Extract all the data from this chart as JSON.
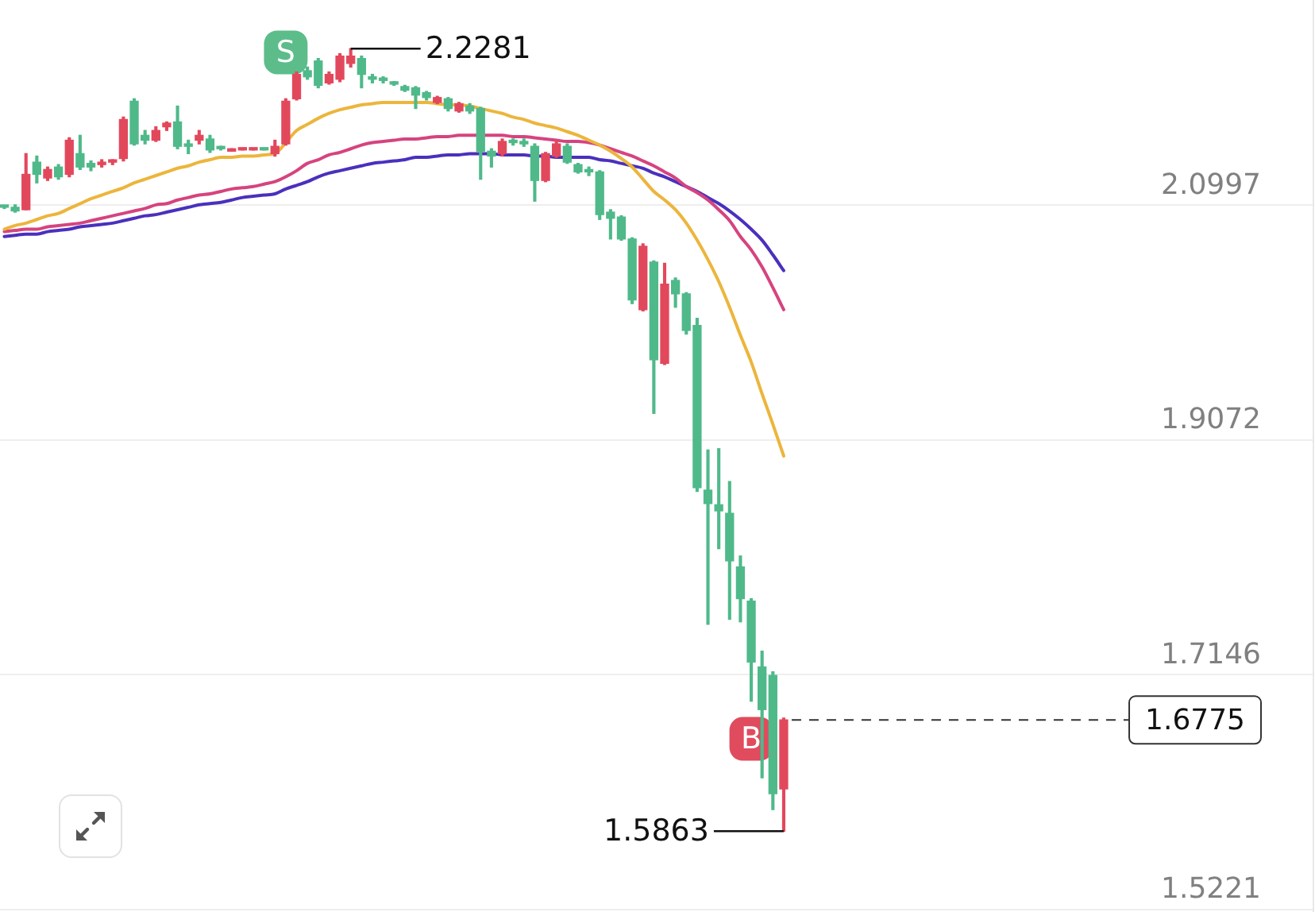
{
  "chart_data": {
    "type": "candlestick",
    "categories": [
      null,
      null,
      null,
      null,
      null,
      null,
      null,
      null,
      null,
      null,
      null,
      null,
      null,
      null,
      null,
      null,
      null,
      null,
      null,
      null,
      null,
      null,
      null,
      null,
      null,
      null,
      null,
      null,
      null,
      null,
      null,
      null,
      null,
      null,
      null,
      null,
      null,
      null,
      null,
      null,
      null,
      null,
      null,
      null,
      null,
      null,
      null,
      null,
      null,
      null,
      null,
      null,
      null,
      null,
      null,
      null,
      null,
      null,
      null,
      null,
      null,
      null,
      null,
      null,
      null,
      null,
      null,
      null,
      null,
      null,
      null,
      null,
      null
    ],
    "series": [
      {
        "ohlc": [
          [
            2.098,
            2.099,
            2.097,
            2.098
          ],
          [
            2.098,
            2.1,
            2.094,
            2.095
          ],
          [
            2.096,
            2.142,
            2.096,
            2.125
          ],
          [
            2.135,
            2.14,
            2.118,
            2.125
          ],
          [
            2.122,
            2.131,
            2.12,
            2.129
          ],
          [
            2.131,
            2.133,
            2.121,
            2.123
          ],
          [
            2.125,
            2.155,
            2.123,
            2.153
          ],
          [
            2.142,
            2.157,
            2.129,
            2.131
          ],
          [
            2.134,
            2.136,
            2.128,
            2.131
          ],
          [
            2.133,
            2.137,
            2.131,
            2.135
          ],
          [
            2.135,
            2.137,
            2.133,
            2.136
          ],
          [
            2.138,
            2.172,
            2.136,
            2.17
          ],
          [
            2.185,
            2.187,
            2.149,
            2.15
          ],
          [
            2.157,
            2.161,
            2.15,
            2.153
          ],
          [
            2.153,
            2.164,
            2.152,
            2.161
          ],
          [
            2.164,
            2.168,
            2.161,
            2.167
          ],
          [
            2.168,
            2.181,
            2.146,
            2.148
          ],
          [
            2.15,
            2.153,
            2.142,
            2.148
          ],
          [
            2.153,
            2.161,
            2.15,
            2.157
          ],
          [
            2.154,
            2.157,
            2.143,
            2.145
          ],
          [
            2.147,
            2.148,
            2.145,
            2.146
          ],
          [
            2.144,
            2.146,
            2.144,
            2.146
          ],
          [
            2.145,
            2.145,
            2.145,
            2.145
          ],
          [
            2.145,
            2.145,
            2.145,
            2.145
          ],
          [
            2.145,
            2.145,
            2.145,
            2.145
          ],
          [
            2.142,
            2.153,
            2.14,
            2.148
          ],
          [
            2.15,
            2.187,
            2.149,
            2.185
          ],
          [
            2.187,
            2.209,
            2.186,
            2.207
          ],
          [
            2.21,
            2.213,
            2.203,
            2.205
          ],
          [
            2.218,
            2.22,
            2.196,
            2.198
          ],
          [
            2.2,
            2.209,
            2.199,
            2.207
          ],
          [
            2.203,
            2.224,
            2.201,
            2.222
          ],
          [
            2.216,
            2.2281,
            2.213,
            2.222
          ],
          [
            2.22,
            2.222,
            2.196,
            2.207
          ],
          [
            2.205,
            2.207,
            2.2,
            2.203
          ],
          [
            2.204,
            2.205,
            2.2,
            2.202
          ],
          [
            2.2,
            2.201,
            2.198,
            2.199
          ],
          [
            2.197,
            2.198,
            2.193,
            2.194
          ],
          [
            2.196,
            2.197,
            2.179,
            2.19
          ],
          [
            2.192,
            2.193,
            2.186,
            2.188
          ],
          [
            2.184,
            2.189,
            2.183,
            2.188
          ],
          [
            2.187,
            2.188,
            2.177,
            2.179
          ],
          [
            2.177,
            2.184,
            2.176,
            2.183
          ],
          [
            2.181,
            2.183,
            2.175,
            2.177
          ],
          [
            2.179,
            2.18,
            2.121,
            2.144
          ],
          [
            2.144,
            2.146,
            2.131,
            2.14
          ],
          [
            2.142,
            2.154,
            2.14,
            2.152
          ],
          [
            2.153,
            2.154,
            2.149,
            2.151
          ],
          [
            2.152,
            2.154,
            2.148,
            2.15
          ],
          [
            2.148,
            2.15,
            2.103,
            2.12
          ],
          [
            2.12,
            2.143,
            2.119,
            2.142
          ],
          [
            2.14,
            2.153,
            2.139,
            2.15
          ],
          [
            2.148,
            2.15,
            2.134,
            2.135
          ],
          [
            2.133,
            2.134,
            2.126,
            2.127
          ],
          [
            2.128,
            2.131,
            2.124,
            2.127
          ],
          [
            2.127,
            2.128,
            2.088,
            2.092
          ],
          [
            2.094,
            2.096,
            2.072,
            2.089
          ],
          [
            2.09,
            2.091,
            2.071,
            2.072
          ],
          [
            2.072,
            2.073,
            2.019,
            2.022
          ],
          [
            2.014,
            2.068,
            2.013,
            2.066
          ],
          [
            2.053,
            2.054,
            1.929,
            1.973
          ],
          [
            1.97,
            2.052,
            1.969,
            2.035
          ],
          [
            2.038,
            2.04,
            2.016,
            2.027
          ],
          [
            2.027,
            2.028,
            1.994,
            1.997
          ],
          [
            2.001,
            2.007,
            1.865,
            1.868
          ],
          [
            1.866,
            1.899,
            1.756,
            1.855
          ],
          [
            1.854,
            1.9,
            1.818,
            1.849
          ],
          [
            1.847,
            1.873,
            1.76,
            1.808
          ],
          [
            1.803,
            1.812,
            1.758,
            1.777
          ],
          [
            1.775,
            1.777,
            1.693,
            1.725
          ],
          [
            1.721,
            1.734,
            1.63,
            1.686
          ],
          [
            1.714,
            1.717,
            1.604,
            1.617
          ],
          [
            1.621,
            1.679,
            1.5863,
            1.6775
          ]
        ],
        "colors": [
          "#4fb98a",
          "#4fb98a",
          "#e2485c",
          "#4fb98a",
          "#e2485c",
          "#4fb98a",
          "#e2485c",
          "#4fb98a",
          "#4fb98a",
          "#e2485c",
          "#e2485c",
          "#e2485c",
          "#4fb98a",
          "#4fb98a",
          "#e2485c",
          "#e2485c",
          "#4fb98a",
          "#4fb98a",
          "#e2485c",
          "#4fb98a",
          "#4fb98a",
          "#e2485c",
          "#e2485c",
          "#e2485c",
          "#4fb98a",
          "#e2485c",
          "#e2485c",
          "#e2485c",
          "#4fb98a",
          "#4fb98a",
          "#e2485c",
          "#e2485c",
          "#e2485c",
          "#4fb98a",
          "#4fb98a",
          "#4fb98a",
          "#4fb98a",
          "#4fb98a",
          "#4fb98a",
          "#4fb98a",
          "#e2485c",
          "#4fb98a",
          "#e2485c",
          "#4fb98a",
          "#4fb98a",
          "#4fb98a",
          "#e2485c",
          "#4fb98a",
          "#4fb98a",
          "#4fb98a",
          "#e2485c",
          "#e2485c",
          "#4fb98a",
          "#4fb98a",
          "#4fb98a",
          "#4fb98a",
          "#4fb98a",
          "#4fb98a",
          "#4fb98a",
          "#e2485c",
          "#4fb98a",
          "#e2485c",
          "#4fb98a",
          "#4fb98a",
          "#4fb98a",
          "#4fb98a",
          "#4fb98a",
          "#4fb98a",
          "#4fb98a",
          "#4fb98a",
          "#4fb98a",
          "#4fb98a",
          "#e2485c"
        ]
      },
      {
        "type": "line",
        "color": "#ecb53c",
        "values": [
          2.08,
          2.083,
          2.085,
          2.088,
          2.091,
          2.093,
          2.097,
          2.101,
          2.105,
          2.108,
          2.111,
          2.114,
          2.118,
          2.121,
          2.124,
          2.127,
          2.13,
          2.132,
          2.135,
          2.137,
          2.139,
          2.139,
          2.14,
          2.14,
          2.141,
          2.142,
          2.151,
          2.161,
          2.166,
          2.171,
          2.175,
          2.178,
          2.18,
          2.182,
          2.183,
          2.184,
          2.184,
          2.184,
          2.184,
          2.184,
          2.183,
          2.182,
          2.182,
          2.181,
          2.179,
          2.177,
          2.175,
          2.172,
          2.17,
          2.167,
          2.165,
          2.163,
          2.16,
          2.157,
          2.153,
          2.149,
          2.144,
          2.138,
          2.131,
          2.121,
          2.111,
          2.104,
          2.096,
          2.085,
          2.071,
          2.055,
          2.037,
          2.016,
          1.993,
          1.971,
          1.945,
          1.92,
          1.894
        ]
      },
      {
        "type": "line",
        "color": "#d6437f",
        "values": [
          2.078,
          2.079,
          2.08,
          2.08,
          2.082,
          2.083,
          2.084,
          2.085,
          2.087,
          2.089,
          2.091,
          2.093,
          2.095,
          2.097,
          2.1,
          2.101,
          2.104,
          2.106,
          2.108,
          2.109,
          2.111,
          2.113,
          2.114,
          2.115,
          2.117,
          2.119,
          2.123,
          2.128,
          2.134,
          2.137,
          2.141,
          2.143,
          2.146,
          2.149,
          2.151,
          2.152,
          2.153,
          2.154,
          2.154,
          2.155,
          2.156,
          2.156,
          2.157,
          2.157,
          2.157,
          2.157,
          2.157,
          2.156,
          2.156,
          2.155,
          2.154,
          2.153,
          2.152,
          2.152,
          2.151,
          2.149,
          2.146,
          2.143,
          2.14,
          2.136,
          2.132,
          2.127,
          2.122,
          2.115,
          2.11,
          2.104,
          2.096,
          2.087,
          2.074,
          2.063,
          2.049,
          2.032,
          2.014
        ]
      },
      {
        "type": "line",
        "color": "#4a30bd",
        "values": [
          2.074,
          2.075,
          2.076,
          2.076,
          2.078,
          2.079,
          2.08,
          2.082,
          2.083,
          2.084,
          2.085,
          2.087,
          2.089,
          2.091,
          2.092,
          2.094,
          2.096,
          2.098,
          2.1,
          2.101,
          2.102,
          2.104,
          2.106,
          2.107,
          2.108,
          2.109,
          2.113,
          2.116,
          2.119,
          2.123,
          2.126,
          2.128,
          2.13,
          2.132,
          2.134,
          2.135,
          2.136,
          2.137,
          2.139,
          2.139,
          2.14,
          2.141,
          2.141,
          2.142,
          2.142,
          2.142,
          2.141,
          2.141,
          2.141,
          2.14,
          2.14,
          2.139,
          2.139,
          2.139,
          2.139,
          2.137,
          2.136,
          2.134,
          2.132,
          2.13,
          2.126,
          2.123,
          2.119,
          2.115,
          2.111,
          2.106,
          2.101,
          2.095,
          2.088,
          2.08,
          2.071,
          2.059,
          2.046
        ]
      },
      {
        "type": "scatter",
        "name": "S",
        "color": "#5cbd8a",
        "marker": "square",
        "values": [
          null,
          null,
          null,
          null,
          null,
          null,
          null,
          null,
          null,
          null,
          null,
          null,
          null,
          null,
          null,
          null,
          null,
          null,
          null,
          null,
          null,
          null,
          null,
          null,
          null,
          null,
          2.225,
          null,
          null,
          null,
          null,
          null,
          null,
          null,
          null,
          null,
          null,
          null,
          null,
          null,
          null,
          null,
          null,
          null,
          null,
          null,
          null,
          null,
          null,
          null,
          null,
          null,
          null,
          null,
          null,
          null,
          null,
          null,
          null,
          null,
          null,
          null,
          null,
          null,
          null,
          null,
          null,
          null,
          null,
          null,
          null,
          null,
          null
        ]
      },
      {
        "type": "scatter",
        "name": "B",
        "color": "#e04b5d",
        "marker": "square",
        "values": [
          null,
          null,
          null,
          null,
          null,
          null,
          null,
          null,
          null,
          null,
          null,
          null,
          null,
          null,
          null,
          null,
          null,
          null,
          null,
          null,
          null,
          null,
          null,
          null,
          null,
          null,
          null,
          null,
          null,
          null,
          null,
          null,
          null,
          null,
          null,
          null,
          null,
          null,
          null,
          null,
          null,
          null,
          null,
          null,
          null,
          null,
          null,
          null,
          null,
          null,
          null,
          null,
          null,
          null,
          null,
          null,
          null,
          null,
          null,
          null,
          null,
          null,
          null,
          null,
          null,
          null,
          null,
          null,
          null,
          1.662,
          null,
          null,
          null
        ]
      }
    ],
    "ylim": [
      1.52,
      2.268
    ],
    "yticks": [
      2.0997,
      1.9072,
      1.7146,
      1.5221
    ],
    "grid": "y",
    "tick_labels": "y",
    "annotations": [
      "2.2281",
      "1.5863"
    ],
    "ref_lines": [
      {
        "axis": "y",
        "value": 1.6775,
        "label": "1.6775",
        "line_style": "dashed",
        "color": "#333333"
      }
    ]
  }
}
